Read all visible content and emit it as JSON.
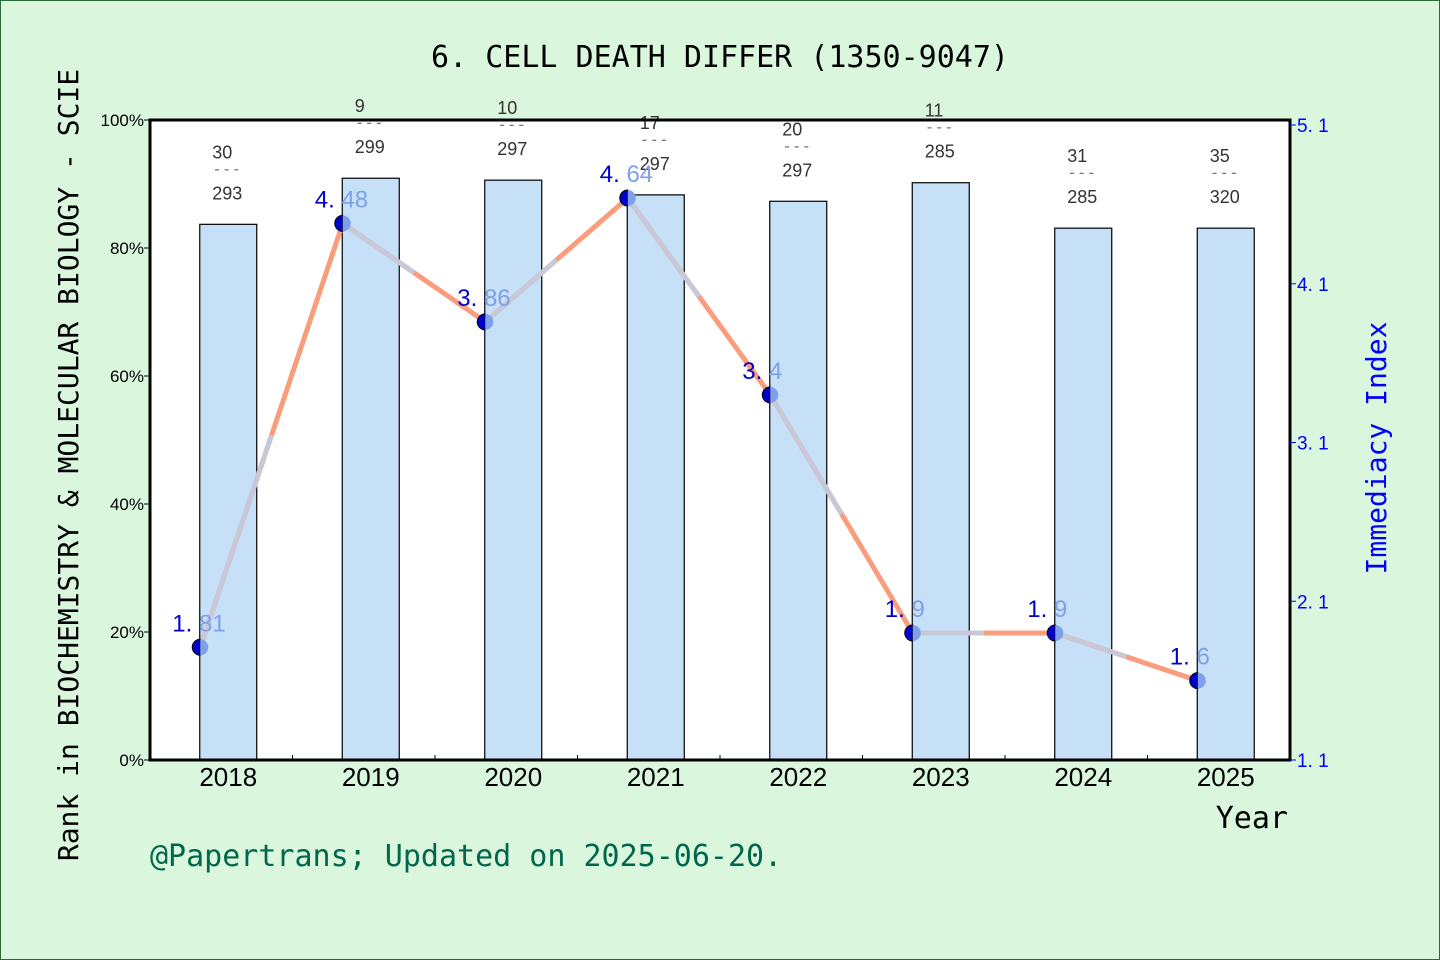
{
  "chart_data": {
    "type": "bar+line",
    "title": "6. CELL DEATH DIFFER (1350-9047)",
    "xlabel": "Year",
    "ylabel": "Rank in BIOCHEMISTRY & MOLECULAR BIOLOGY - SCIE",
    "y2label": "Immediacy Index",
    "categories": [
      "2018",
      "2019",
      "2020",
      "2021",
      "2022",
      "2023",
      "2024",
      "2025"
    ],
    "bar_series": {
      "values_percent": [
        83.7,
        90.9,
        90.6,
        88.3,
        87.3,
        90.2,
        83.1,
        83.1
      ]
    },
    "rank_labels": [
      {
        "rank": "30",
        "total": "293"
      },
      {
        "rank": "9",
        "total": "299"
      },
      {
        "rank": "10",
        "total": "297"
      },
      {
        "rank": "17",
        "total": "297"
      },
      {
        "rank": "20",
        "total": "297"
      },
      {
        "rank": "11",
        "total": "285"
      },
      {
        "rank": "31",
        "total": "285"
      },
      {
        "rank": "35",
        "total": "320"
      }
    ],
    "line_series": {
      "values": [
        1.81,
        4.48,
        3.86,
        4.64,
        3.4,
        1.9,
        1.9,
        1.6
      ],
      "labels": [
        "1.81",
        "4.48",
        "3.86",
        "4.64",
        "3.4",
        "1.9",
        "1.9",
        "1.6"
      ]
    },
    "ylim": [
      0,
      100
    ],
    "yticks": [
      "0%",
      "20%",
      "40%",
      "60%",
      "80%",
      "100%"
    ],
    "y2lim": [
      1.1,
      5.1
    ],
    "y2ticks": [
      "1.1",
      "2.1",
      "3.1",
      "4.1",
      "5.1"
    ],
    "grid": false,
    "colors": {
      "bar": "#c5e0f7",
      "line": "#fa9d7c",
      "line_overlay": "#c8c8d8",
      "marker_dark": "#0000cc",
      "marker_light": "#7f9fe8",
      "right_axis": "#0000ff",
      "footer": "#00664c"
    }
  },
  "footer": "@Papertrans; Updated on 2025-06-20."
}
